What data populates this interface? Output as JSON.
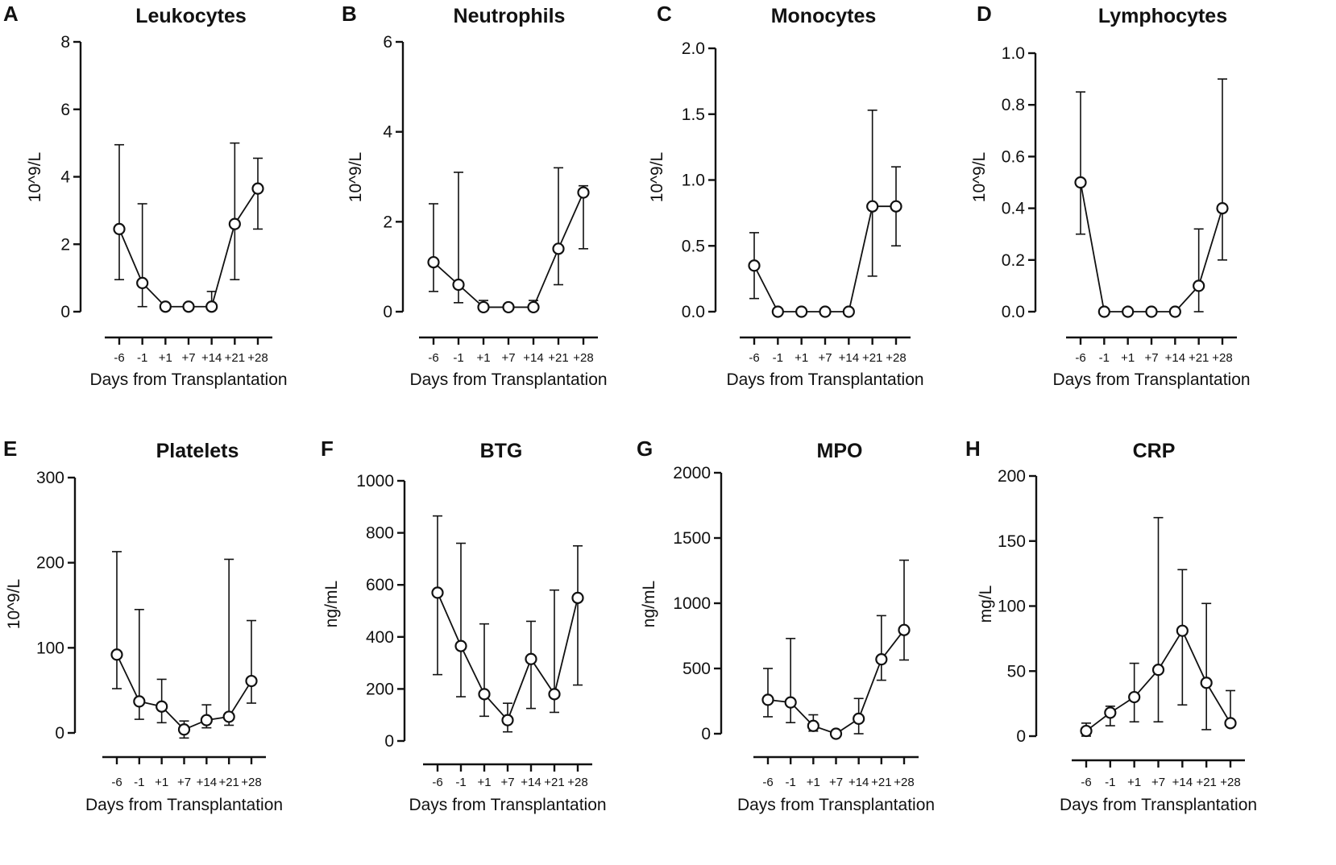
{
  "figure": {
    "background": "#ffffff",
    "ink": "#111111"
  },
  "chart_data": [
    {
      "panel": "A",
      "type": "line",
      "title": "Leukocytes",
      "xlabel": "Days from Transplantation",
      "ylabel": "10^9/L",
      "categories": [
        "-6",
        "-1",
        "+1",
        "+7",
        "+14",
        "+21",
        "+28"
      ],
      "ylim": [
        0,
        8
      ],
      "yticks": [
        0,
        2,
        4,
        6,
        8
      ],
      "ytick_labels": [
        "0",
        "2",
        "4",
        "6",
        "8"
      ],
      "values": [
        2.45,
        0.85,
        0.15,
        0.15,
        0.15,
        2.6,
        3.65
      ],
      "err_low": [
        0.95,
        0.15,
        0.15,
        0.15,
        0.15,
        0.95,
        2.45
      ],
      "err_high": [
        4.95,
        3.2,
        0.15,
        0.15,
        0.6,
        5.0,
        4.55
      ]
    },
    {
      "panel": "B",
      "type": "line",
      "title": "Neutrophils",
      "xlabel": "Days from Transplantation",
      "ylabel": "10^9/L",
      "categories": [
        "-6",
        "-1",
        "+1",
        "+7",
        "+14",
        "+21",
        "+28"
      ],
      "ylim": [
        0,
        6
      ],
      "yticks": [
        0,
        2,
        4,
        6
      ],
      "ytick_labels": [
        "0",
        "2",
        "4",
        "6"
      ],
      "values": [
        1.1,
        0.6,
        0.1,
        0.1,
        0.1,
        1.4,
        2.65
      ],
      "err_low": [
        0.45,
        0.2,
        0.1,
        0.1,
        0.1,
        0.6,
        1.4
      ],
      "err_high": [
        2.4,
        3.1,
        0.25,
        0.1,
        0.25,
        3.2,
        2.8
      ]
    },
    {
      "panel": "C",
      "type": "line",
      "title": "Monocytes",
      "xlabel": "Days from Transplantation",
      "ylabel": "10^9/L",
      "categories": [
        "-6",
        "-1",
        "+1",
        "+7",
        "+14",
        "+21",
        "+28"
      ],
      "ylim": [
        0,
        2.0
      ],
      "yticks": [
        0,
        0.5,
        1.0,
        1.5,
        2.0
      ],
      "ytick_labels": [
        "0.0",
        "0.5",
        "1.0",
        "1.5",
        "2.0"
      ],
      "values": [
        0.35,
        0.0,
        0.0,
        0.0,
        0.0,
        0.8,
        0.8
      ],
      "err_low": [
        0.1,
        0.0,
        0.0,
        0.0,
        0.0,
        0.27,
        0.5
      ],
      "err_high": [
        0.6,
        0.0,
        0.0,
        0.0,
        0.0,
        1.53,
        1.1
      ]
    },
    {
      "panel": "D",
      "type": "line",
      "title": "Lymphocytes",
      "xlabel": "Days from Transplantation",
      "ylabel": "10^9/L",
      "categories": [
        "-6",
        "-1",
        "+1",
        "+7",
        "+14",
        "+21",
        "+28"
      ],
      "ylim": [
        0,
        1.0
      ],
      "yticks": [
        0,
        0.2,
        0.4,
        0.6,
        0.8,
        1.0
      ],
      "ytick_labels": [
        "0.0",
        "0.2",
        "0.4",
        "0.6",
        "0.8",
        "1.0"
      ],
      "values": [
        0.5,
        0.0,
        0.0,
        0.0,
        0.0,
        0.1,
        0.4
      ],
      "err_low": [
        0.3,
        0.0,
        0.0,
        0.0,
        0.0,
        0.0,
        0.2
      ],
      "err_high": [
        0.85,
        0.0,
        0.0,
        0.0,
        0.0,
        0.32,
        0.9
      ]
    },
    {
      "panel": "E",
      "type": "line",
      "title": "Platelets",
      "xlabel": "Days from Transplantation",
      "ylabel": "10^9/L",
      "categories": [
        "-6",
        "-1",
        "+1",
        "+7",
        "+14",
        "+21",
        "+28"
      ],
      "ylim": [
        0,
        300
      ],
      "yticks": [
        0,
        100,
        200,
        300
      ],
      "ytick_labels": [
        "0",
        "100",
        "200",
        "300"
      ],
      "values": [
        92,
        37,
        31,
        4,
        15,
        19,
        61
      ],
      "err_low": [
        52,
        16,
        12,
        -6,
        6,
        9,
        35
      ],
      "err_high": [
        213,
        145,
        63,
        14,
        33,
        204,
        132
      ]
    },
    {
      "panel": "F",
      "type": "line",
      "title": "BTG",
      "xlabel": "Days from Transplantation",
      "ylabel": "ng/mL",
      "categories": [
        "-6",
        "-1",
        "+1",
        "+7",
        "+14",
        "+21",
        "+28"
      ],
      "ylim": [
        0,
        1000
      ],
      "yticks": [
        0,
        200,
        400,
        600,
        800,
        1000
      ],
      "ytick_labels": [
        "0",
        "200",
        "400",
        "600",
        "800",
        "1000"
      ],
      "values": [
        570,
        365,
        180,
        80,
        315,
        180,
        550
      ],
      "err_low": [
        255,
        170,
        95,
        35,
        125,
        110,
        215
      ],
      "err_high": [
        865,
        760,
        450,
        145,
        460,
        580,
        750
      ]
    },
    {
      "panel": "G",
      "type": "line",
      "title": "MPO",
      "xlabel": "Days from Transplantation",
      "ylabel": "ng/mL",
      "categories": [
        "-6",
        "-1",
        "+1",
        "+7",
        "+14",
        "+21",
        "+28"
      ],
      "ylim": [
        0,
        2000
      ],
      "yticks": [
        0,
        500,
        1000,
        1500,
        2000
      ],
      "ytick_labels": [
        "0",
        "500",
        "1000",
        "1500",
        "2000"
      ],
      "values": [
        260,
        240,
        60,
        0,
        115,
        570,
        795
      ],
      "err_low": [
        130,
        85,
        20,
        0,
        0,
        410,
        565
      ],
      "err_high": [
        500,
        730,
        145,
        0,
        270,
        905,
        1330
      ]
    },
    {
      "panel": "H",
      "type": "line",
      "title": "CRP",
      "xlabel": "Days from Transplantation",
      "ylabel": "mg/L",
      "categories": [
        "-6",
        "-1",
        "+1",
        "+7",
        "+14",
        "+21",
        "+28"
      ],
      "ylim": [
        0,
        200
      ],
      "yticks": [
        0,
        50,
        100,
        150,
        200
      ],
      "ytick_labels": [
        "0",
        "50",
        "100",
        "150",
        "200"
      ],
      "values": [
        4,
        18,
        30,
        51,
        81,
        41,
        10
      ],
      "err_low": [
        0,
        8,
        11,
        11,
        24,
        5,
        10
      ],
      "err_high": [
        10,
        23,
        56,
        168,
        128,
        102,
        35
      ]
    }
  ]
}
